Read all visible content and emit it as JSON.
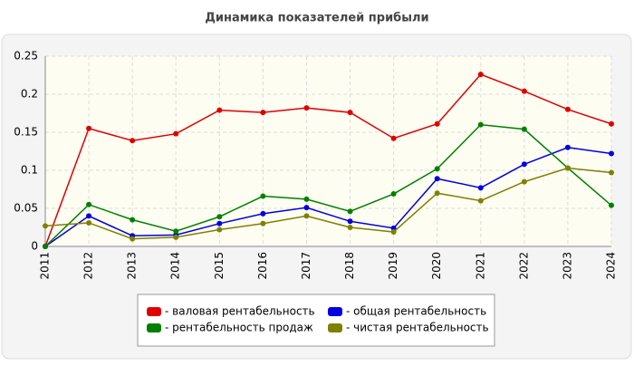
{
  "chart_data": {
    "type": "line",
    "title": "Динамика показателей прибыли",
    "categories": [
      "2011",
      "2012",
      "2013",
      "2014",
      "2015",
      "2016",
      "2017",
      "2018",
      "2019",
      "2020",
      "2021",
      "2022",
      "2023",
      "2024"
    ],
    "series": [
      {
        "name": "- валовая рентабельность",
        "color": "#e00000",
        "values": [
          0,
          0.155,
          0.139,
          0.148,
          0.179,
          0.176,
          0.182,
          0.176,
          0.142,
          0.161,
          0.226,
          0.204,
          0.18,
          0.161
        ]
      },
      {
        "name": "- общая рентабельность",
        "color": "#0000e0",
        "values": [
          0,
          0.04,
          0.014,
          0.015,
          0.03,
          0.043,
          0.051,
          0.033,
          0.024,
          0.089,
          0.077,
          0.108,
          0.13,
          0.122
        ]
      },
      {
        "name": "- рентабельность продаж",
        "color": "#008000",
        "values": [
          0,
          0.055,
          0.035,
          0.02,
          0.039,
          0.066,
          0.062,
          0.046,
          0.069,
          0.102,
          0.16,
          0.154,
          0.103,
          0.054
        ]
      },
      {
        "name": "- чистая рентабельность",
        "color": "#808000",
        "values": [
          0.027,
          0.031,
          0.01,
          0.012,
          0.022,
          0.03,
          0.04,
          0.025,
          0.019,
          0.07,
          0.06,
          0.085,
          0.103,
          0.097
        ]
      }
    ],
    "ylim": [
      0,
      0.25
    ],
    "yticks": [
      0,
      0.05,
      0.1,
      0.15,
      0.2,
      0.25
    ],
    "grid": true
  }
}
